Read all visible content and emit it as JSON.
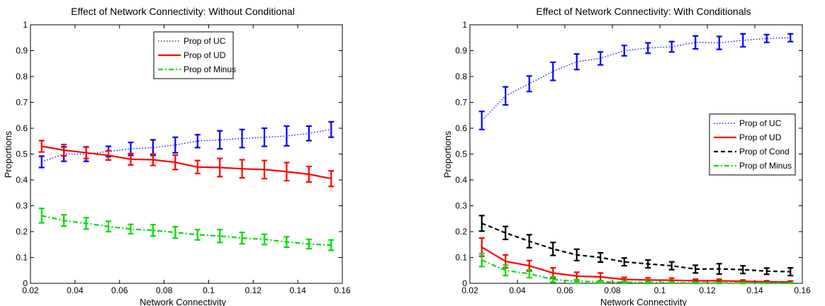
{
  "chart_data": [
    {
      "type": "line",
      "title": "Effect of Network Connectivity: Without Conditional",
      "xlabel": "Network Connectivity",
      "ylabel": "Proportions",
      "xlim": [
        0.02,
        0.16
      ],
      "ylim": [
        0,
        1
      ],
      "xticks": [
        "0.02",
        "0.04",
        "0.06",
        "0.08",
        "0.1",
        "0.12",
        "0.14",
        "0.16"
      ],
      "yticks": [
        "0",
        "0.1",
        "0.2",
        "0.3",
        "0.4",
        "0.5",
        "0.6",
        "0.7",
        "0.8",
        "0.9",
        "1"
      ],
      "x": [
        0.025,
        0.035,
        0.045,
        0.055,
        0.065,
        0.075,
        0.085,
        0.095,
        0.105,
        0.115,
        0.125,
        0.135,
        0.145,
        0.155
      ],
      "legend_position": "top-center",
      "series": [
        {
          "name": "Prop of UC",
          "color": "#0000ff",
          "style": "dotted",
          "values": [
            0.47,
            0.5,
            0.5,
            0.51,
            0.52,
            0.525,
            0.535,
            0.55,
            0.555,
            0.56,
            0.565,
            0.57,
            0.58,
            0.595
          ],
          "err": [
            0.022,
            0.028,
            0.028,
            0.02,
            0.025,
            0.03,
            0.03,
            0.025,
            0.035,
            0.035,
            0.035,
            0.038,
            0.028,
            0.03
          ]
        },
        {
          "name": "Prop of UD",
          "color": "#ff0000",
          "style": "solid",
          "values": [
            0.53,
            0.515,
            0.505,
            0.495,
            0.48,
            0.478,
            0.468,
            0.45,
            0.448,
            0.443,
            0.44,
            0.432,
            0.422,
            0.405
          ],
          "err": [
            0.022,
            0.022,
            0.022,
            0.018,
            0.022,
            0.022,
            0.028,
            0.025,
            0.035,
            0.035,
            0.035,
            0.035,
            0.03,
            0.03
          ]
        },
        {
          "name": "Prop of Minus",
          "color": "#00dd00",
          "style": "dashdot",
          "values": [
            0.262,
            0.243,
            0.232,
            0.22,
            0.21,
            0.205,
            0.197,
            0.188,
            0.183,
            0.175,
            0.17,
            0.16,
            0.152,
            0.148
          ],
          "err": [
            0.028,
            0.022,
            0.022,
            0.02,
            0.018,
            0.022,
            0.022,
            0.02,
            0.025,
            0.022,
            0.02,
            0.02,
            0.018,
            0.02
          ]
        }
      ]
    },
    {
      "type": "line",
      "title": "Effect of Network Connectivity: With Conditionals",
      "xlabel": "Network Connectivity",
      "ylabel": "Proportions",
      "xlim": [
        0.02,
        0.16
      ],
      "ylim": [
        0,
        1
      ],
      "xticks": [
        "0.02",
        "0.04",
        "0.06",
        "0.08",
        "0.1",
        "0.12",
        "0.14",
        "0.16"
      ],
      "yticks": [
        "0",
        "0.1",
        "0.2",
        "0.3",
        "0.4",
        "0.5",
        "0.6",
        "0.7",
        "0.8",
        "0.9",
        "1"
      ],
      "x": [
        0.025,
        0.035,
        0.045,
        0.055,
        0.065,
        0.075,
        0.085,
        0.095,
        0.105,
        0.115,
        0.125,
        0.135,
        0.145,
        0.155
      ],
      "legend_position": "right",
      "series": [
        {
          "name": "Prop of UC",
          "color": "#0000ff",
          "style": "dotted",
          "values": [
            0.63,
            0.725,
            0.772,
            0.82,
            0.857,
            0.87,
            0.9,
            0.91,
            0.915,
            0.932,
            0.93,
            0.94,
            0.947,
            0.95
          ],
          "err": [
            0.035,
            0.035,
            0.03,
            0.035,
            0.03,
            0.025,
            0.02,
            0.02,
            0.02,
            0.025,
            0.025,
            0.025,
            0.015,
            0.015
          ]
        },
        {
          "name": "Prop of UD",
          "color": "#ff0000",
          "style": "solid",
          "values": [
            0.14,
            0.085,
            0.068,
            0.04,
            0.028,
            0.025,
            0.015,
            0.013,
            0.012,
            0.01,
            0.01,
            0.008,
            0.006,
            0.005
          ],
          "err": [
            0.035,
            0.025,
            0.02,
            0.02,
            0.015,
            0.015,
            0.008,
            0.008,
            0.008,
            0.006,
            0.006,
            0.005,
            0.004,
            0.004
          ]
        },
        {
          "name": "Prop of Cond",
          "color": "#000000",
          "style": "dashed",
          "values": [
            0.232,
            0.195,
            0.163,
            0.133,
            0.11,
            0.1,
            0.083,
            0.075,
            0.068,
            0.055,
            0.056,
            0.053,
            0.047,
            0.045
          ],
          "err": [
            0.03,
            0.025,
            0.025,
            0.025,
            0.022,
            0.018,
            0.015,
            0.015,
            0.015,
            0.015,
            0.02,
            0.015,
            0.012,
            0.015
          ]
        },
        {
          "name": "Prop of Minus",
          "color": "#00dd00",
          "style": "dashdot",
          "values": [
            0.09,
            0.05,
            0.037,
            0.015,
            0.008,
            0.006,
            0.004,
            0.003,
            0.003,
            0.002,
            0.002,
            0.002,
            0.001,
            0.001
          ],
          "err": [
            0.025,
            0.02,
            0.015,
            0.01,
            0.006,
            0.004,
            0.003,
            0.003,
            0.002,
            0.002,
            0.002,
            0.002,
            0.001,
            0.001
          ]
        }
      ]
    }
  ]
}
